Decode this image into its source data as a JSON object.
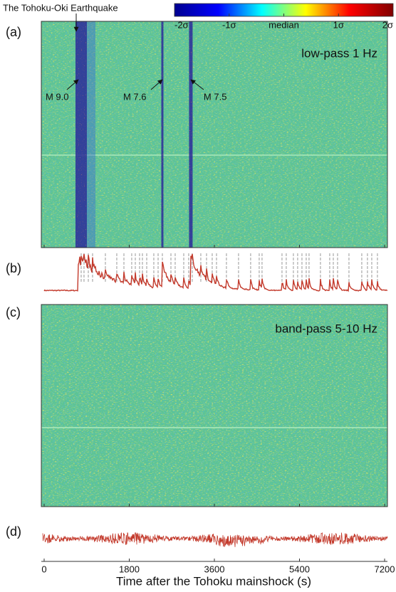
{
  "chart_data": {
    "type": "heatmap",
    "panel_labels": [
      "(a)",
      "(b)",
      "(c)",
      "(d)"
    ],
    "panel_titles": [
      "low-pass 1 Hz",
      "band-pass 5-10 Hz"
    ],
    "xlabel": "Time after the Tohoku mainshock (s)",
    "xlim": [
      -60,
      7260
    ],
    "xticks": [
      0,
      1800,
      3600,
      5400,
      7200
    ],
    "colorbar": {
      "clim": [
        -2,
        2
      ],
      "ticks": [
        {
          "value": -2,
          "label": "-2σ"
        },
        {
          "value": -1,
          "label": "-1σ"
        },
        {
          "value": 0,
          "label": "median"
        },
        {
          "value": 1,
          "label": "1σ"
        },
        {
          "value": 2,
          "label": "2σ"
        }
      ],
      "colors": [
        "#00008f",
        "#0000ff",
        "#00ffff",
        "#ffff00",
        "#ff0000",
        "#800000"
      ]
    },
    "annotations": [
      {
        "text": "The Tohoku-Oki Earthquake",
        "x": 678
      },
      {
        "text": "M 9.0",
        "x": 723
      },
      {
        "text": "M 7.6",
        "x": 2500
      },
      {
        "text": "M 7.5",
        "x": 3102
      }
    ],
    "detected_events": [
      783,
      843,
      934,
      1024,
      1295,
      1536,
      1687,
      1852,
      1928,
      2018,
      2078,
      2169,
      2319,
      2410,
      2500,
      2681,
      2771,
      2952,
      3057,
      3132,
      3313,
      3434,
      3554,
      3645,
      3855,
      4111,
      4367,
      4548,
      4608,
      5030,
      5120,
      5271,
      5361,
      5452,
      5542,
      5602,
      5843,
      6039,
      6115,
      6205,
      6446,
      6717,
      6837,
      6928,
      7048
    ],
    "trace_color": "#c33a2c"
  }
}
